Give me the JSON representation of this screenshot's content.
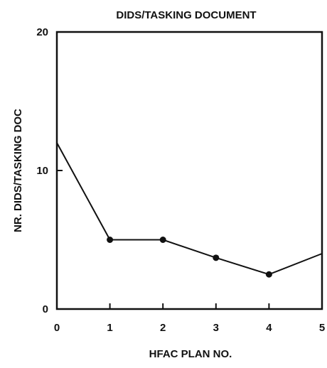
{
  "chart_data": {
    "type": "line",
    "title": "DIDS/TASKING DOCUMENT",
    "xlabel": "HFAC PLAN NO.",
    "ylabel": "NR. DIDS/TASKING DOC",
    "x": [
      0,
      1,
      2,
      3,
      4,
      5
    ],
    "series": [
      {
        "values": [
          12,
          5,
          5,
          3.7,
          2.5,
          4
        ],
        "markers": [
          false,
          true,
          true,
          true,
          true,
          false
        ]
      }
    ],
    "xlim": [
      0,
      5
    ],
    "ylim": [
      0,
      20
    ],
    "xticks": [
      "0",
      "1",
      "2",
      "3",
      "4",
      "5"
    ],
    "yticks": [
      "0",
      "10",
      "20"
    ],
    "ytick_values": [
      0,
      10,
      20
    ],
    "grid": false,
    "line_color": "#111111"
  }
}
